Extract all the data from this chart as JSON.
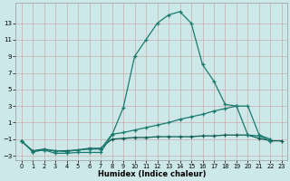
{
  "xlabel": "Humidex (Indice chaleur)",
  "x_values": [
    0,
    1,
    2,
    3,
    4,
    5,
    6,
    7,
    8,
    9,
    10,
    11,
    12,
    13,
    14,
    15,
    16,
    17,
    18,
    19,
    20,
    21,
    22,
    23
  ],
  "line1": [
    -1.2,
    -2.5,
    -2.3,
    -2.7,
    -2.7,
    -2.6,
    -2.6,
    -2.6,
    -0.5,
    2.8,
    9.0,
    11.0,
    13.0,
    14.0,
    14.4,
    13.0,
    8.0,
    6.0,
    3.2,
    3.0,
    -0.5,
    -0.6,
    -1.2,
    null
  ],
  "line2": [
    -1.2,
    -2.5,
    -2.3,
    -2.4,
    -2.5,
    -2.3,
    -2.2,
    -2.2,
    -0.4,
    -0.2,
    0.1,
    0.4,
    0.7,
    1.0,
    1.4,
    1.7,
    2.0,
    2.4,
    2.7,
    3.0,
    3.0,
    -0.5,
    -1.0,
    null
  ],
  "line3": [
    -1.2,
    -2.4,
    -2.2,
    -2.4,
    -2.4,
    -2.3,
    -2.1,
    -2.1,
    -1.0,
    -0.9,
    -0.8,
    -0.8,
    -0.7,
    -0.7,
    -0.7,
    -0.7,
    -0.6,
    -0.6,
    -0.5,
    -0.5,
    -0.5,
    -0.9,
    -1.2,
    -1.2
  ],
  "line_color1": "#1a7a6e",
  "line_color2": "#1a7a6e",
  "line_color3": "#0d5c52",
  "bg_color": "#cde8e8",
  "grid_color_major": "#aacccc",
  "grid_color_minor": "#c8dede",
  "ylim": [
    -3.5,
    15.5
  ],
  "xlim": [
    -0.5,
    23.5
  ],
  "yticks": [
    -3,
    -1,
    1,
    3,
    5,
    7,
    9,
    11,
    13
  ],
  "xticks": [
    0,
    1,
    2,
    3,
    4,
    5,
    6,
    7,
    8,
    9,
    10,
    11,
    12,
    13,
    14,
    15,
    16,
    17,
    18,
    19,
    20,
    21,
    22,
    23
  ]
}
